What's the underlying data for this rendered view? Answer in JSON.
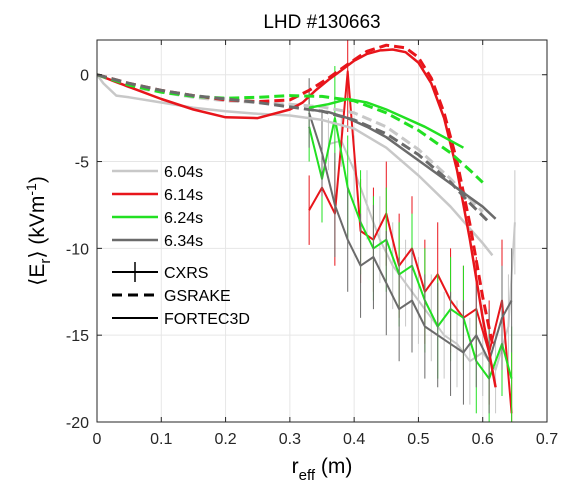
{
  "chart_data": {
    "type": "line",
    "title": "LHD #130663",
    "xlabel": {
      "main": "r",
      "sub": "eff",
      "unit": " (m)"
    },
    "ylabel": {
      "open": "⟨E",
      "sub": "r",
      "close": "⟩ (kVm",
      "sup": "-1",
      "end": ")"
    },
    "xlim": [
      0,
      0.7
    ],
    "ylim": [
      -20,
      2
    ],
    "xticks": [
      0,
      0.1,
      0.2,
      0.3,
      0.4,
      0.5,
      0.6,
      0.7
    ],
    "xtick_labels": [
      "0",
      "0.1",
      "0.2",
      "0.3",
      "0.4",
      "0.5",
      "0.6",
      "0.7"
    ],
    "yticks": [
      -20,
      -15,
      -10,
      -5,
      0
    ],
    "ytick_labels": [
      "-20",
      "-15",
      "-10",
      "-5",
      "0"
    ],
    "grid": true,
    "legend_times": [
      {
        "label": "6.04s",
        "color": "#c8c8c8"
      },
      {
        "label": "6.14s",
        "color": "#e8151b"
      },
      {
        "label": "6.24s",
        "color": "#22e022"
      },
      {
        "label": "6.34s",
        "color": "#6b6b6b"
      }
    ],
    "legend_styles": [
      {
        "label": "CXRS",
        "style": "errorbar"
      },
      {
        "label": "GSRAKE",
        "style": "dashed"
      },
      {
        "label": "FORTEC3D",
        "style": "solid"
      }
    ],
    "series": [
      {
        "time_index": 0,
        "method": "FORTEC3D",
        "color": "#c8c8c8",
        "x": [
          0,
          0.01,
          0.03,
          0.05,
          0.1,
          0.15,
          0.2,
          0.25,
          0.3,
          0.35,
          0.4,
          0.45,
          0.5,
          0.55,
          0.6,
          0.615
        ],
        "y": [
          0,
          -0.5,
          -1.2,
          -1.3,
          -1.6,
          -1.9,
          -2.1,
          -2.25,
          -2.35,
          -2.6,
          -3.1,
          -4.2,
          -5.8,
          -7.6,
          -9.7,
          -10.4
        ]
      },
      {
        "time_index": 0,
        "method": "GSRAKE",
        "color": "#c8c8c8",
        "x": [
          0,
          0.05,
          0.1,
          0.15,
          0.2,
          0.25,
          0.3,
          0.35,
          0.4,
          0.45,
          0.5,
          0.55,
          0.6
        ],
        "y": [
          0,
          -0.7,
          -1.0,
          -1.3,
          -1.5,
          -1.6,
          -1.7,
          -1.85,
          -2.2,
          -3.0,
          -4.3,
          -6.0,
          -7.9
        ]
      },
      {
        "time_index": 1,
        "method": "FORTEC3D",
        "color": "#e8151b",
        "x": [
          0,
          0.05,
          0.1,
          0.15,
          0.2,
          0.25,
          0.3,
          0.32,
          0.34,
          0.36,
          0.38,
          0.4,
          0.42,
          0.44,
          0.46,
          0.48,
          0.5,
          0.52,
          0.54,
          0.56,
          0.58,
          0.6,
          0.62
        ],
        "y": [
          0,
          -0.7,
          -1.4,
          -2.0,
          -2.45,
          -2.5,
          -2.0,
          -1.6,
          -0.9,
          -0.3,
          0.25,
          0.8,
          1.2,
          1.4,
          1.45,
          1.3,
          0.7,
          -0.5,
          -2.5,
          -5.5,
          -9.5,
          -14.0,
          -18.0
        ]
      },
      {
        "time_index": 1,
        "method": "GSRAKE",
        "color": "#e8151b",
        "x": [
          0,
          0.05,
          0.1,
          0.15,
          0.2,
          0.25,
          0.3,
          0.33,
          0.36,
          0.39,
          0.42,
          0.45,
          0.48,
          0.5,
          0.52,
          0.54,
          0.56,
          0.58,
          0.6,
          0.615
        ],
        "y": [
          0,
          -0.5,
          -0.9,
          -1.2,
          -1.45,
          -1.55,
          -1.45,
          -0.9,
          -0.2,
          0.6,
          1.35,
          1.7,
          1.55,
          1.0,
          -0.2,
          -2.2,
          -5.0,
          -8.6,
          -12.8,
          -15.5
        ]
      },
      {
        "time_index": 2,
        "method": "GSRAKE",
        "color": "#22e022",
        "x": [
          0,
          0.05,
          0.1,
          0.15,
          0.2,
          0.25,
          0.3,
          0.35,
          0.4,
          0.45,
          0.5,
          0.55,
          0.58,
          0.6
        ],
        "y": [
          0,
          -0.6,
          -1.0,
          -1.25,
          -1.35,
          -1.3,
          -1.2,
          -1.25,
          -1.5,
          -2.2,
          -3.2,
          -4.5,
          -5.5,
          -6.2
        ]
      },
      {
        "time_index": 3,
        "method": "GSRAKE",
        "color": "#6b6b6b",
        "x": [
          0,
          0.05,
          0.1,
          0.15,
          0.2,
          0.25,
          0.3,
          0.35,
          0.4,
          0.45,
          0.5,
          0.55,
          0.58,
          0.61
        ],
        "y": [
          0,
          -0.5,
          -0.9,
          -1.2,
          -1.4,
          -1.6,
          -1.85,
          -2.1,
          -2.6,
          -3.4,
          -4.6,
          -6.2,
          -7.4,
          -8.5
        ]
      },
      {
        "time_index": 3,
        "method": "FORTEC3D",
        "color": "#6b6b6b",
        "x": [
          0.33,
          0.36,
          0.39,
          0.42,
          0.45,
          0.48,
          0.51,
          0.54,
          0.57,
          0.6,
          0.62
        ],
        "y": [
          -2.0,
          -2.15,
          -2.5,
          -3.0,
          -3.6,
          -4.4,
          -5.2,
          -6.0,
          -6.8,
          -7.6,
          -8.3
        ]
      },
      {
        "time_index": 2,
        "method": "FORTEC3D",
        "color": "#22e022",
        "x": [
          0.33,
          0.36,
          0.39,
          0.42,
          0.45,
          0.48,
          0.51,
          0.54,
          0.57
        ],
        "y": [
          -1.9,
          -1.7,
          -1.4,
          -1.6,
          -2.0,
          -2.5,
          -3.0,
          -3.6,
          -4.2
        ]
      },
      {
        "time_index": 0,
        "method": "CXRS",
        "color": "#c8c8c8",
        "x": [
          0.36,
          0.38,
          0.4,
          0.42,
          0.44,
          0.46,
          0.48,
          0.5,
          0.52,
          0.54,
          0.56,
          0.58,
          0.6,
          0.62,
          0.64,
          0.65
        ],
        "y": [
          -4.0,
          -3.8,
          -5.5,
          -7.5,
          -9.5,
          -11.0,
          -12.0,
          -13.0,
          -14.0,
          -15.0,
          -15.5,
          -16.5,
          -16.0,
          -17.0,
          -14.5,
          -8.5
        ],
        "err": [
          1.5,
          1.5,
          2.0,
          2.0,
          2.5,
          2.5,
          2.5,
          2.5,
          2.5,
          2.5,
          2.5,
          2.5,
          2.5,
          2.5,
          3.0,
          3.0
        ]
      },
      {
        "time_index": 1,
        "method": "CXRS",
        "color": "#e8151b",
        "x": [
          0.33,
          0.35,
          0.37,
          0.39,
          0.41,
          0.43,
          0.45,
          0.47,
          0.49,
          0.51,
          0.53,
          0.55,
          0.57,
          0.59,
          0.61,
          0.63,
          0.645
        ],
        "y": [
          -7.8,
          -6.5,
          -8.0,
          0.2,
          -9.0,
          -9.5,
          -8.0,
          -11.0,
          -10.0,
          -12.5,
          -11.5,
          -13.0,
          -14.0,
          -13.5,
          -16.0,
          -13.0,
          -19.5
        ],
        "err": [
          2.0,
          2.0,
          3.0,
          3.5,
          3.0,
          3.0,
          3.0,
          3.0,
          3.0,
          3.0,
          3.0,
          3.0,
          3.0,
          3.0,
          3.0,
          3.5,
          3.5
        ]
      },
      {
        "time_index": 2,
        "method": "CXRS",
        "color": "#22e022",
        "x": [
          0.33,
          0.35,
          0.37,
          0.39,
          0.41,
          0.43,
          0.45,
          0.47,
          0.49,
          0.51,
          0.53,
          0.55,
          0.57,
          0.59,
          0.61,
          0.63,
          0.645
        ],
        "y": [
          -3.0,
          -6.0,
          -2.5,
          -6.5,
          -8.5,
          -10.0,
          -9.5,
          -11.5,
          -11.0,
          -13.0,
          -14.5,
          -13.5,
          -14.0,
          -16.5,
          -17.5,
          -15.5,
          -17.5
        ],
        "err": [
          2.0,
          2.5,
          3.0,
          3.0,
          3.0,
          3.0,
          3.0,
          3.0,
          3.0,
          3.0,
          3.0,
          3.0,
          3.0,
          3.0,
          3.0,
          3.0,
          3.0
        ]
      },
      {
        "time_index": 3,
        "method": "CXRS",
        "color": "#6b6b6b",
        "x": [
          0.33,
          0.35,
          0.37,
          0.39,
          0.41,
          0.43,
          0.45,
          0.47,
          0.49,
          0.51,
          0.53,
          0.55,
          0.57,
          0.59,
          0.61,
          0.63,
          0.645
        ],
        "y": [
          -2.2,
          -4.5,
          -7.5,
          -9.5,
          -11.0,
          -10.5,
          -12.0,
          -13.5,
          -13.0,
          -14.5,
          -15.0,
          -15.5,
          -16.0,
          -15.0,
          -16.5,
          -14.0,
          -13.0
        ],
        "err": [
          2.0,
          2.5,
          3.0,
          3.0,
          3.0,
          3.0,
          3.0,
          3.0,
          3.0,
          3.0,
          3.0,
          3.0,
          3.0,
          3.0,
          3.0,
          3.0,
          3.0
        ]
      }
    ]
  }
}
